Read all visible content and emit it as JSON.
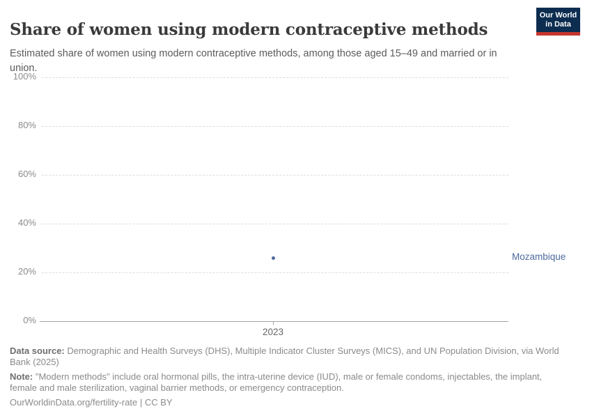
{
  "header": {
    "title": "Share of women using modern contraceptive methods",
    "subtitle": "Estimated share of women using modern contraceptive methods, among those aged 15–49 and married or in union.",
    "logo": {
      "line1": "Our World",
      "line2": "in Data"
    }
  },
  "chart_data": {
    "type": "scatter",
    "title": "Share of women using modern contraceptive methods",
    "x": [
      2023
    ],
    "series": [
      {
        "name": "Mozambique",
        "values": [
          26
        ]
      }
    ],
    "unit": "%",
    "ylim": [
      0,
      100
    ],
    "yticks": [
      {
        "value": 100,
        "label": "100%"
      },
      {
        "value": 80,
        "label": "80%"
      },
      {
        "value": 60,
        "label": "60%"
      },
      {
        "value": 40,
        "label": "40%"
      },
      {
        "value": 20,
        "label": "20%"
      },
      {
        "value": 0,
        "label": "0%"
      }
    ],
    "xticks": [
      "2023"
    ],
    "grid": "horizontal-dashed",
    "legend_position": "right-entity-label",
    "point_color": "#4c6a9c"
  },
  "colors": {
    "accent_blue": "#4c6a9c",
    "logo_navy": "#0c2d50",
    "logo_red": "#c4372d",
    "gridline": "#dcdcdc",
    "axis": "#a3a3a3",
    "title_text": "#3a3a3a",
    "subtitle_text": "#5b5b5b",
    "footer_text": "#8a8a8a"
  },
  "footer": {
    "data_source_label": "Data source:",
    "data_source_text": " Demographic and Health Surveys (DHS), Multiple Indicator Cluster Surveys (MICS), and UN Population Division, via World Bank (2025)",
    "note_label": "Note:",
    "note_text": " \"Modern methods\" include oral hormonal pills, the intra-uterine device (IUD), male or female condoms, injectables, the implant, female and male sterilization, vaginal barrier methods, or emergency contraception.",
    "citation_link": "OurWorldinData.org/fertility-rate",
    "citation_suffix": " | CC BY"
  }
}
